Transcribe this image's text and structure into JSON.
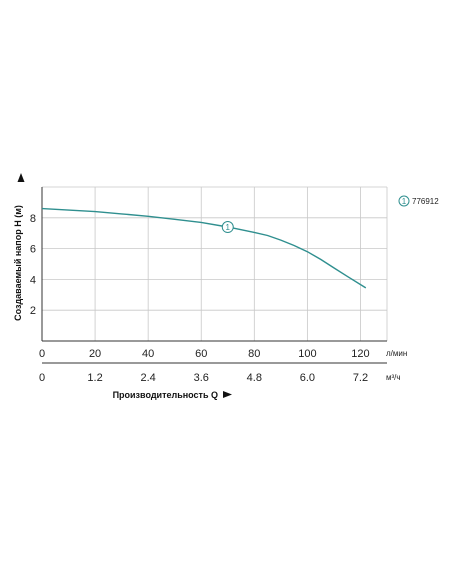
{
  "chart_data": {
    "type": "line",
    "title": "",
    "ylabel": "Создаваемый напор H (м)",
    "xlabel": "Производительность Q",
    "x_unit_primary": "л/мин",
    "x_unit_secondary": "м³/ч",
    "xlim": [
      0,
      130
    ],
    "ylim": [
      0,
      10
    ],
    "x_ticks": [
      "0",
      "20",
      "40",
      "60",
      "80",
      "100",
      "120"
    ],
    "x_ticks_secondary": [
      "0",
      "1.2",
      "2.4",
      "3.6",
      "4.8",
      "6.0",
      "7.2"
    ],
    "y_ticks": [
      "2",
      "4",
      "6",
      "8"
    ],
    "grid": true,
    "legend_position": "top-right",
    "series": [
      {
        "name": "776912",
        "marker_label": "1",
        "color": "#2f8f8f",
        "x": [
          0,
          10,
          20,
          30,
          40,
          50,
          60,
          70,
          80,
          85,
          90,
          95,
          100,
          105,
          110,
          115,
          122
        ],
        "y": [
          8.6,
          8.5,
          8.4,
          8.25,
          8.1,
          7.9,
          7.7,
          7.4,
          7.05,
          6.85,
          6.55,
          6.2,
          5.8,
          5.3,
          4.75,
          4.2,
          3.45
        ]
      }
    ]
  }
}
